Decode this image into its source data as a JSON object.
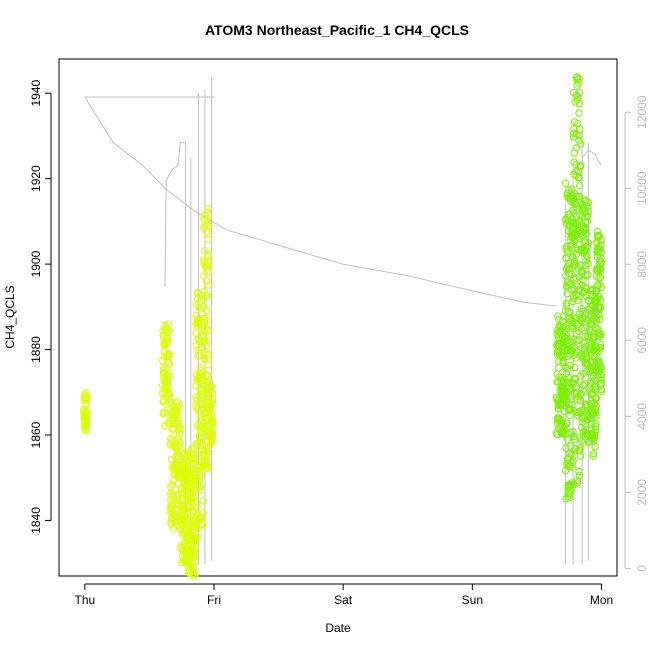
{
  "chart_data": {
    "type": "scatter",
    "title": "ATOM3 Northeast_Pacific_1 CH4_QCLS",
    "xlabel": "Date",
    "ylabel": "CH4_QCLS",
    "x_ticks": [
      {
        "label": "Thu",
        "value": 0
      },
      {
        "label": "Fri",
        "value": 1
      },
      {
        "label": "Sat",
        "value": 2
      },
      {
        "label": "Sun",
        "value": 3
      },
      {
        "label": "Mon",
        "value": 4
      }
    ],
    "xlim": [
      -0.2,
      4.12
    ],
    "ylim": [
      1827,
      1948
    ],
    "y_ticks": [
      1840,
      1860,
      1880,
      1900,
      1920,
      1940
    ],
    "y2_ticks": [
      0,
      2000,
      4000,
      6000,
      8000,
      10000,
      12000
    ],
    "y2lim": [
      -200,
      13400
    ],
    "grid": false,
    "colors": {
      "points_early": "#dcff00",
      "points_late": "#7cf000",
      "secondary_line": "#bfbfbf",
      "right_axis": "#bdbdbd"
    },
    "secondary_series": {
      "name": "",
      "points": [
        [
          0.0,
          12400
        ],
        [
          0.22,
          11200
        ],
        [
          0.45,
          10600
        ],
        [
          0.62,
          10000
        ],
        [
          0.85,
          9400
        ],
        [
          1.1,
          8900
        ],
        [
          1.5,
          8500
        ],
        [
          2.0,
          8000
        ],
        [
          2.5,
          7700
        ],
        [
          3.0,
          7300
        ],
        [
          3.4,
          7000
        ],
        [
          3.65,
          6900
        ]
      ],
      "segments_early": [
        [
          0.62,
          7400
        ],
        [
          0.63,
          10200
        ],
        [
          0.66,
          10400
        ],
        [
          0.68,
          10500
        ],
        [
          0.72,
          10600
        ],
        [
          0.74,
          11200
        ],
        [
          0.78,
          11200
        ]
      ],
      "spikes": [
        {
          "x": 0.78,
          "min": 100,
          "max": 11200
        },
        {
          "x": 0.82,
          "min": 300,
          "max": 10800
        },
        {
          "x": 0.88,
          "min": 100,
          "max": 12500
        },
        {
          "x": 0.93,
          "min": 100,
          "max": 12600
        },
        {
          "x": 0.98,
          "min": 200,
          "max": 12900
        },
        {
          "x": 3.72,
          "min": 100,
          "max": 9600
        },
        {
          "x": 3.78,
          "min": 100,
          "max": 10200
        },
        {
          "x": 3.85,
          "min": 100,
          "max": 11500
        },
        {
          "x": 3.9,
          "min": 200,
          "max": 11200
        }
      ],
      "late_tail": [
        [
          3.85,
          10800
        ],
        [
          3.9,
          11000
        ],
        [
          3.95,
          10900
        ],
        [
          3.98,
          10700
        ],
        [
          4.0,
          10600
        ]
      ],
      "top_flat": [
        [
          0.0,
          12400
        ],
        [
          0.6,
          12400
        ],
        [
          1.0,
          12400
        ]
      ]
    },
    "clusters": [
      {
        "x0": -0.01,
        "x1": 0.02,
        "ymin": 1861,
        "ymax": 1870,
        "count": 40,
        "color": "points_early"
      },
      {
        "x0": 0.6,
        "x1": 0.66,
        "ymin": 1862,
        "ymax": 1886,
        "count": 70,
        "color": "points_early"
      },
      {
        "x0": 0.66,
        "x1": 0.74,
        "ymin": 1838,
        "ymax": 1868,
        "count": 110,
        "color": "points_early"
      },
      {
        "x0": 0.74,
        "x1": 0.8,
        "ymin": 1830,
        "ymax": 1856,
        "count": 110,
        "color": "points_early"
      },
      {
        "x0": 0.8,
        "x1": 0.86,
        "ymin": 1827,
        "ymax": 1858,
        "count": 110,
        "color": "points_early"
      },
      {
        "x0": 0.86,
        "x1": 0.92,
        "ymin": 1836,
        "ymax": 1895,
        "count": 120,
        "color": "points_early"
      },
      {
        "x0": 0.92,
        "x1": 0.96,
        "ymin": 1852,
        "ymax": 1914,
        "count": 90,
        "color": "points_early"
      },
      {
        "x0": 0.96,
        "x1": 0.99,
        "ymin": 1858,
        "ymax": 1872,
        "count": 40,
        "color": "points_early"
      },
      {
        "x0": 3.65,
        "x1": 3.72,
        "ymin": 1860,
        "ymax": 1888,
        "count": 110,
        "color": "points_late"
      },
      {
        "x0": 3.72,
        "x1": 3.78,
        "ymin": 1845,
        "ymax": 1920,
        "count": 140,
        "color": "points_late"
      },
      {
        "x0": 3.78,
        "x1": 3.84,
        "ymin": 1848,
        "ymax": 1944,
        "count": 140,
        "color": "points_late"
      },
      {
        "x0": 3.84,
        "x1": 3.9,
        "ymin": 1858,
        "ymax": 1915,
        "count": 120,
        "color": "points_late"
      },
      {
        "x0": 3.9,
        "x1": 3.96,
        "ymin": 1855,
        "ymax": 1895,
        "count": 110,
        "color": "points_late"
      },
      {
        "x0": 3.96,
        "x1": 4.0,
        "ymin": 1870,
        "ymax": 1908,
        "count": 80,
        "color": "points_late"
      }
    ]
  }
}
